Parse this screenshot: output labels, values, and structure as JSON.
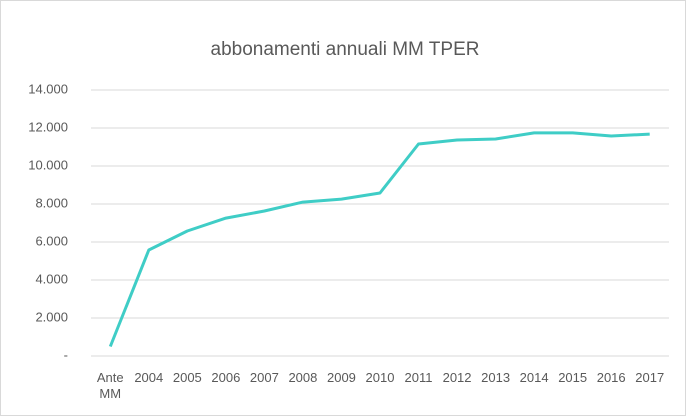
{
  "chart_data": {
    "type": "line",
    "title": "abbonamenti annuali MM TPER",
    "categories": [
      "Ante MM",
      "2004",
      "2005",
      "2006",
      "2007",
      "2008",
      "2009",
      "2010",
      "2011",
      "2012",
      "2013",
      "2014",
      "2015",
      "2016",
      "2017"
    ],
    "values": [
      500,
      5580,
      6580,
      7260,
      7630,
      8100,
      8260,
      8580,
      11160,
      11370,
      11420,
      11740,
      11740,
      11580,
      11680
    ],
    "color": "#3fcdc6",
    "ylim": [
      0,
      14000
    ],
    "yticks": [
      {
        "value": 0,
        "label": "-"
      },
      {
        "value": 2000,
        "label": "2.000"
      },
      {
        "value": 4000,
        "label": "4.000"
      },
      {
        "value": 6000,
        "label": "6.000"
      },
      {
        "value": 8000,
        "label": "8.000"
      },
      {
        "value": 10000,
        "label": "10.000"
      },
      {
        "value": 12000,
        "label": "12.000"
      },
      {
        "value": 14000,
        "label": "14.000"
      }
    ],
    "grid": true
  }
}
